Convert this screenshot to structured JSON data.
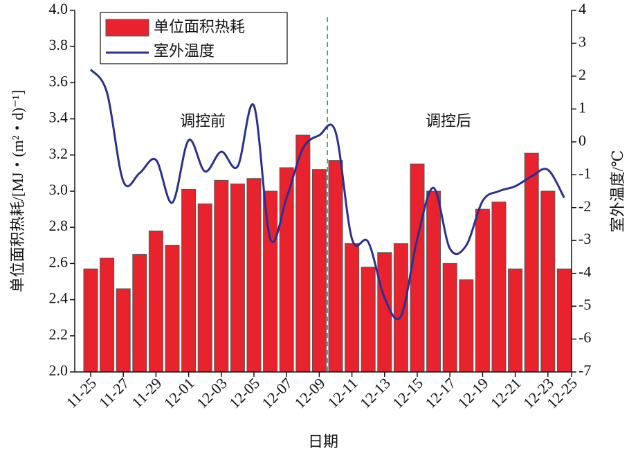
{
  "chart_data": {
    "type": "bar_line",
    "x_label": "日期",
    "y_label": "单位面积热耗/[MJ・(m²・d)⁻¹]",
    "y2_label": "室外温度/℃",
    "annotations": [
      "调控前",
      "调控后"
    ],
    "categories": [
      "11-25",
      null,
      "11-27",
      null,
      "11-29",
      null,
      "12-01",
      null,
      "12-03",
      null,
      "12-05",
      null,
      "12-07",
      null,
      "12-09",
      null,
      "12-11",
      null,
      "12-13",
      null,
      "12-15",
      null,
      "12-17",
      null,
      "12-19",
      null,
      "12-21",
      null,
      "12-23",
      null,
      "12-25"
    ],
    "series": [
      {
        "name": "单位面积热耗",
        "type": "bar",
        "color": "#e8232d",
        "values": [
          2.57,
          2.63,
          2.46,
          2.65,
          2.78,
          2.7,
          3.01,
          2.93,
          3.06,
          3.04,
          3.07,
          3.0,
          3.13,
          3.31,
          3.12,
          3.17,
          2.71,
          2.58,
          2.66,
          2.71,
          3.15,
          3.0,
          2.6,
          2.51,
          2.9,
          2.94,
          2.57,
          3.21,
          3.0,
          2.57,
          null
        ]
      },
      {
        "name": "室外温度",
        "type": "line",
        "axis": "y2",
        "color": "#2b2f8f",
        "values": [
          2.2,
          1.5,
          -1.2,
          -0.95,
          -0.55,
          -1.85,
          0.05,
          -0.9,
          -0.3,
          -0.75,
          1.1,
          -2.95,
          -1.7,
          -0.2,
          0.2,
          0.3,
          -2.95,
          -3.05,
          -4.75,
          -5.3,
          -2.95,
          -1.4,
          -3.25,
          -3.15,
          -1.8,
          -1.5,
          -1.35,
          -1.05,
          -0.85,
          -1.7,
          null
        ]
      }
    ],
    "ylim": [
      2.0,
      4.0
    ],
    "yticks": [
      {
        "value": 2.0,
        "label": "2.0"
      },
      2.2,
      2.4,
      2.6,
      2.8,
      {
        "value": 3.0,
        "label": "3.0"
      },
      3.2,
      3.4,
      3.6,
      3.8,
      {
        "value": 4.0,
        "label": "4.0"
      }
    ],
    "y2lim": [
      -7,
      4
    ],
    "y2ticks": [
      -7,
      -6,
      -5,
      -4,
      -3,
      -2,
      -1,
      0,
      1,
      2,
      3,
      4
    ],
    "legend": "upper left"
  }
}
